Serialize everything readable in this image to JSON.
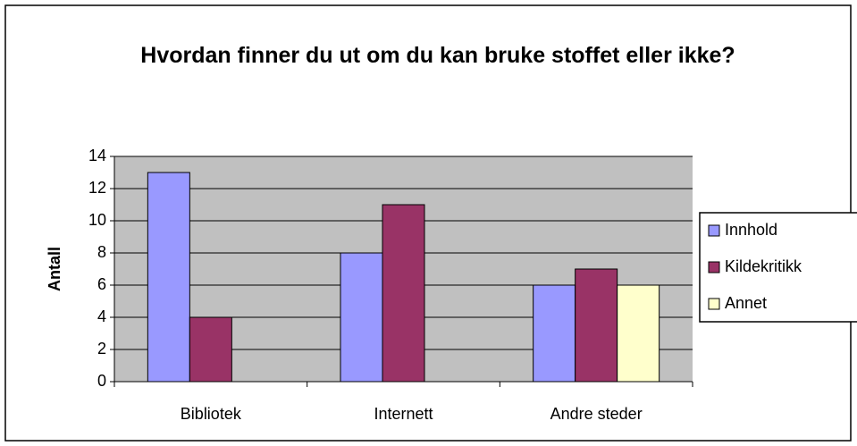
{
  "chart_data": {
    "type": "bar",
    "title": "Hvordan finner du ut om du kan bruke stoffet eller ikke?",
    "y_label": "Antall",
    "categories": [
      "Bibliotek",
      "Internett",
      "Andre steder"
    ],
    "series": [
      {
        "name": "Innhold",
        "color": "#9999ff",
        "values": [
          13,
          8,
          6
        ]
      },
      {
        "name": "Kildekritikk",
        "color": "#993366",
        "values": [
          4,
          11,
          7
        ]
      },
      {
        "name": "Annet",
        "color": "#ffffcc",
        "values": [
          0,
          0,
          6
        ]
      }
    ],
    "ylim": [
      0,
      14
    ],
    "yticks": [
      0,
      2,
      4,
      6,
      8,
      10,
      12,
      14
    ],
    "grid": true,
    "legend": "right"
  }
}
